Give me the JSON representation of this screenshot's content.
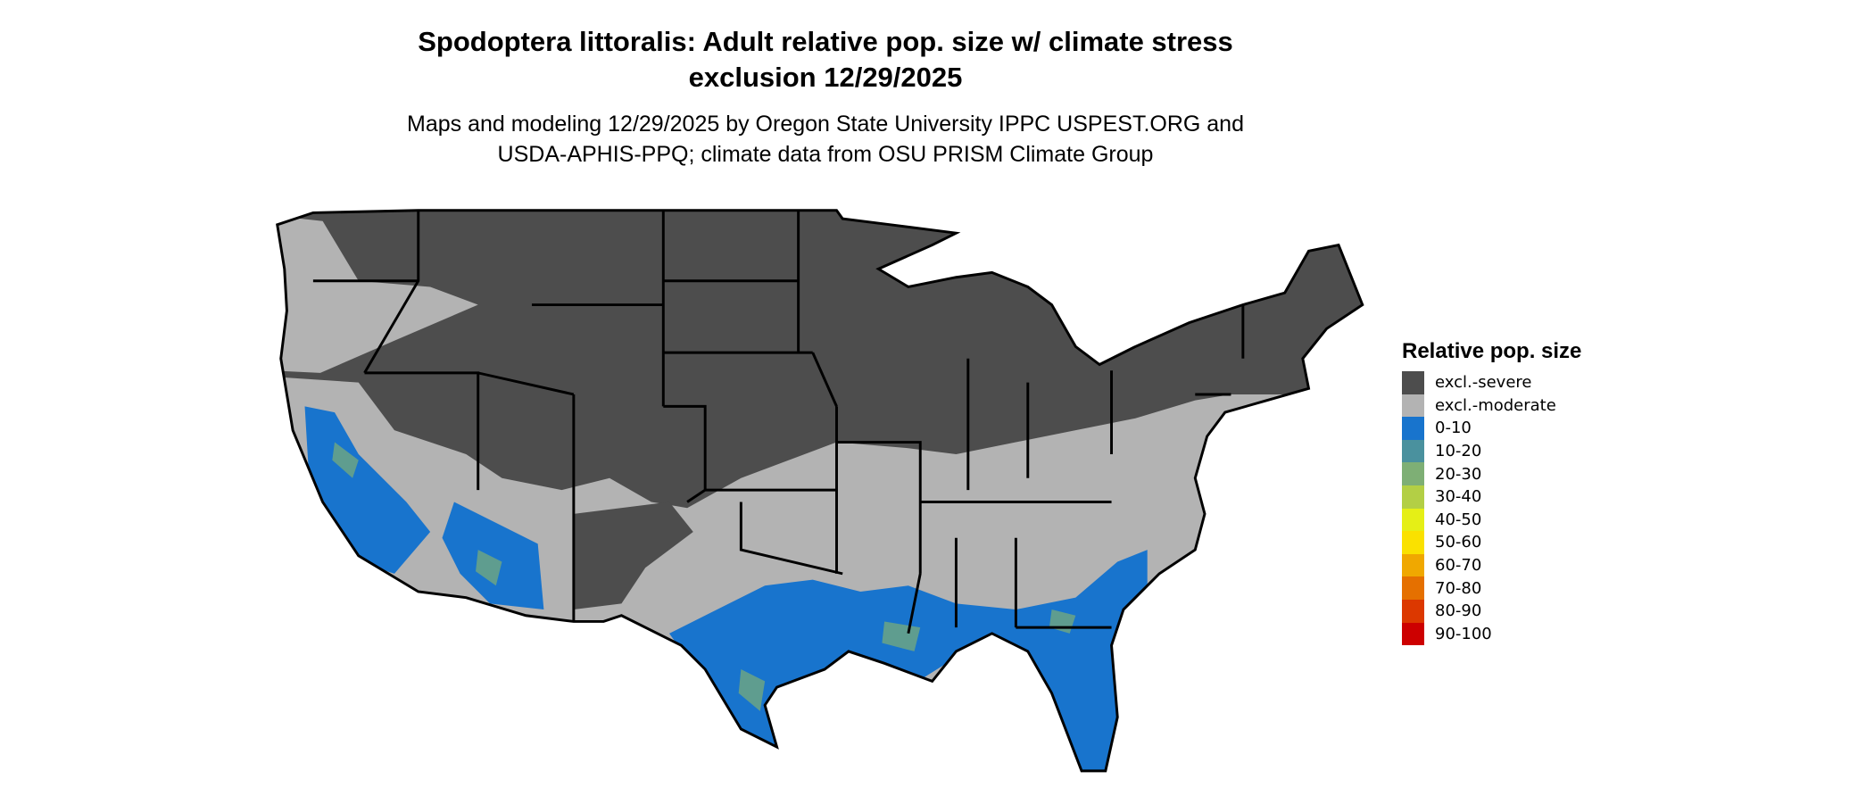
{
  "title_line1": "Spodoptera littoralis: Adult relative pop. size w/ climate stress",
  "title_line2": "exclusion 12/29/2025",
  "subtitle_line1": "Maps and modeling 12/29/2025 by Oregon State University IPPC USPEST.ORG and",
  "subtitle_line2": "USDA-APHIS-PPQ; climate data from OSU PRISM Climate Group",
  "chart_data": {
    "type": "heatmap",
    "region": "Contiguous United States",
    "legend": {
      "title": "Relative pop. size",
      "placement": "right",
      "items": [
        {
          "label": "excl.-severe",
          "color": "#4d4d4d"
        },
        {
          "label": "excl.-moderate",
          "color": "#b3b3b3"
        },
        {
          "label": "0-10",
          "color": "#1874cd"
        },
        {
          "label": "10-20",
          "color": "#4a919e"
        },
        {
          "label": "20-30",
          "color": "#7eaf75"
        },
        {
          "label": "30-40",
          "color": "#b3cf45"
        },
        {
          "label": "40-50",
          "color": "#e5ef16"
        },
        {
          "label": "50-60",
          "color": "#fae100"
        },
        {
          "label": "60-70",
          "color": "#f0a800"
        },
        {
          "label": "70-80",
          "color": "#e57000"
        },
        {
          "label": "80-90",
          "color": "#dc3800"
        },
        {
          "label": "90-100",
          "color": "#cd0000"
        }
      ]
    }
  }
}
